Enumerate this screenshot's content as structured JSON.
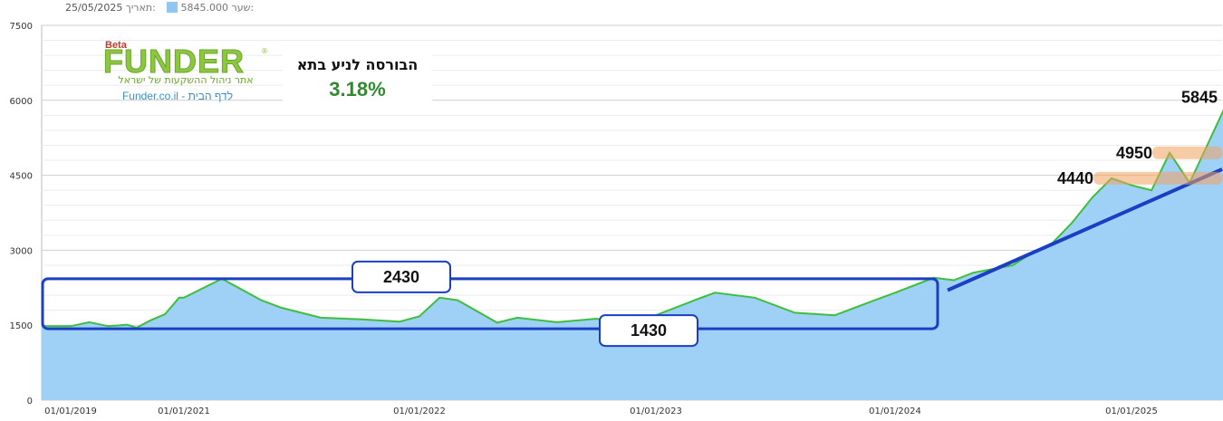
{
  "header": {
    "rate_label": "שער:",
    "rate_value": "5845.000",
    "date_label": "תאריך:",
    "date_value": "25/05/2025",
    "legend_color": "#90c6f0"
  },
  "logo": {
    "beta": "Beta",
    "name": "FUNDER",
    "tagline": "אתר ניהול ההשקעות של ישראל",
    "link": "Funder.co.il - לדף הבית"
  },
  "title": {
    "text": "הבורסה לניע בתא",
    "change": "3.18%"
  },
  "chart_data": {
    "type": "area",
    "ylim": [
      0,
      7500
    ],
    "yticks": [
      "0",
      "1500",
      "3000",
      "4500",
      "6000",
      "7500"
    ],
    "xtick_labels": [
      "01/01/2019",
      "01/01/2021",
      "01/01/2022",
      "01/01/2023",
      "01/01/2024",
      "01/01/2025"
    ],
    "x": [
      "2019-01-01",
      "2019-05-01",
      "2019-09-01",
      "2020-01-01",
      "2020-03-01",
      "2020-06-01",
      "2020-09-01",
      "2020-12-01",
      "2021-01-01",
      "2021-03-01",
      "2021-05-01",
      "2021-06-01",
      "2021-08-01",
      "2021-10-01",
      "2021-12-01",
      "2022-01-01",
      "2022-02-01",
      "2022-03-01",
      "2022-05-01",
      "2022-06-01",
      "2022-08-01",
      "2022-10-01",
      "2022-11-01",
      "2023-01-01",
      "2023-03-01",
      "2023-04-01",
      "2023-06-01",
      "2023-08-01",
      "2023-10-01",
      "2023-12-01",
      "2024-01-01",
      "2024-03-01",
      "2024-04-01",
      "2024-05-01",
      "2024-07-01",
      "2024-08-01",
      "2024-09-01",
      "2024-10-01",
      "2024-11-01",
      "2024-12-01",
      "2025-01-01",
      "2025-02-01",
      "2025-03-01",
      "2025-04-01",
      "2025-05-25"
    ],
    "values": [
      1480,
      1560,
      1480,
      1510,
      1450,
      1600,
      1720,
      2050,
      2050,
      2430,
      2000,
      1850,
      1650,
      1620,
      1570,
      1680,
      2050,
      2000,
      1550,
      1650,
      1560,
      1630,
      1550,
      1700,
      2000,
      2150,
      2050,
      1750,
      1700,
      2000,
      2150,
      2450,
      2400,
      2550,
      2700,
      2950,
      3150,
      3550,
      4050,
      4440,
      4300,
      4200,
      4950,
      4350,
      5845
    ],
    "series": [
      {
        "values_ref": "values",
        "color": "#3dbf3d",
        "fill": "#9fd0f5"
      }
    ],
    "annotations": {
      "range_top": "2430",
      "range_bottom": "1430",
      "level_mid": "4440",
      "level_high": "4950",
      "last": "5845"
    },
    "grid": true
  }
}
